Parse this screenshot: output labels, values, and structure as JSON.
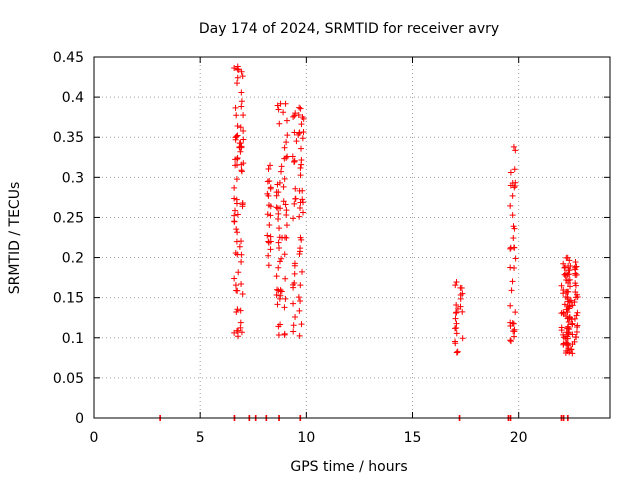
{
  "chart_data": {
    "type": "scatter",
    "title": "Day 174 of 2024, SRMTID for receiver avry",
    "xlabel": "GPS time / hours",
    "ylabel": "SRMTID / TECUs",
    "xlim": [
      0,
      24.3
    ],
    "ylim": [
      0,
      0.45
    ],
    "xticks": [
      0,
      5,
      10,
      15,
      20
    ],
    "xtick_labels": [
      "0",
      "5",
      "10",
      "15",
      "20"
    ],
    "yticks": [
      0,
      0.05,
      0.1,
      0.15,
      0.2,
      0.25,
      0.3,
      0.35,
      0.4,
      0.45
    ],
    "ytick_labels": [
      "0",
      "0.05",
      "0.1",
      "0.15",
      "0.2",
      "0.25",
      "0.3",
      "0.35",
      "0.4",
      "0.45"
    ],
    "grid": true,
    "marker": "plus",
    "color": "#ff0000",
    "clusters": [
      {
        "x_range": [
          6.6,
          7.3
        ],
        "y_range": [
          0.1,
          0.44
        ],
        "count": 80
      },
      {
        "x_range": [
          8.1,
          8.4
        ],
        "y_range": [
          0.19,
          0.32
        ],
        "count": 20
      },
      {
        "x_range": [
          8.6,
          9.9
        ],
        "y_range": [
          0.1,
          0.4
        ],
        "count": 120
      },
      {
        "x_range": [
          17.0,
          17.4
        ],
        "y_range": [
          0.08,
          0.17
        ],
        "count": 25
      },
      {
        "x_range": [
          19.6,
          19.9
        ],
        "y_range": [
          0.09,
          0.34
        ],
        "count": 35
      },
      {
        "x_range": [
          21.9,
          22.9
        ],
        "y_range": [
          0.08,
          0.2
        ],
        "count": 110
      }
    ],
    "zero_points_x": [
      3.1,
      6.6,
      7.3,
      7.6,
      8.1,
      8.7,
      9.7,
      17.2,
      19.5,
      19.6,
      22.0,
      22.1,
      22.3
    ]
  }
}
